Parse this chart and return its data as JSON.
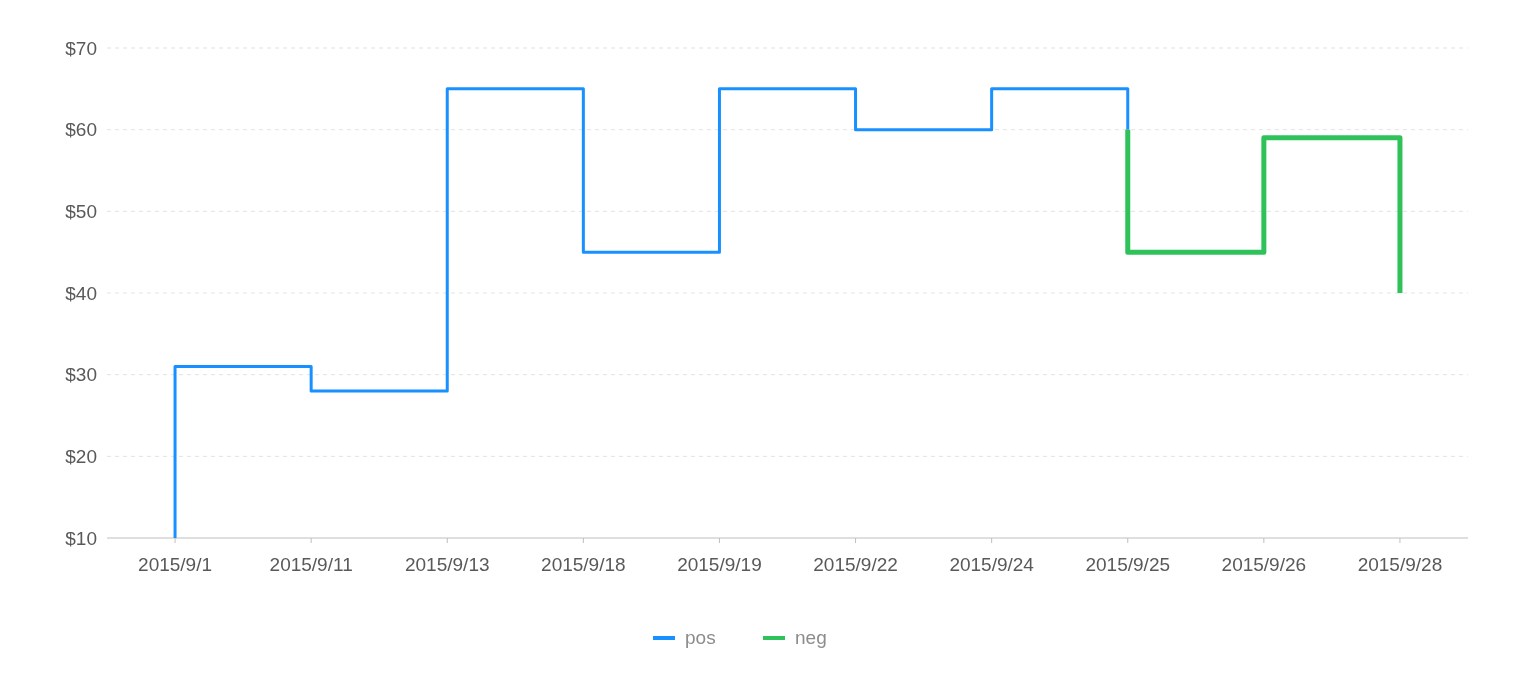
{
  "chart_data": {
    "type": "step",
    "categories": [
      "2015/9/1",
      "2015/9/11",
      "2015/9/13",
      "2015/9/18",
      "2015/9/19",
      "2015/9/22",
      "2015/9/24",
      "2015/9/25",
      "2015/9/26",
      "2015/9/28"
    ],
    "series": [
      {
        "name": "pos",
        "color": "#1890ff",
        "x": [
          "2015/9/1",
          "2015/9/11",
          "2015/9/13",
          "2015/9/18",
          "2015/9/19",
          "2015/9/22",
          "2015/9/24",
          "2015/9/25",
          "2015/9/25"
        ],
        "values": [
          10,
          31,
          28,
          65,
          45,
          65,
          60,
          65,
          60
        ]
      },
      {
        "name": "neg",
        "color": "#2fc25b",
        "x": [
          "2015/9/25",
          "2015/9/26",
          "2015/9/28",
          "2015/9/28"
        ],
        "values": [
          60,
          45,
          59,
          40
        ]
      }
    ],
    "ylim": [
      10,
      70
    ],
    "yticks": [
      {
        "value": 10,
        "label": "$10"
      },
      {
        "value": 20,
        "label": "$20"
      },
      {
        "value": 30,
        "label": "$30"
      },
      {
        "value": 40,
        "label": "$40"
      },
      {
        "value": 50,
        "label": "$50"
      },
      {
        "value": 60,
        "label": "$60"
      },
      {
        "value": 70,
        "label": "$70"
      }
    ],
    "grid": "y",
    "legend": "bottom"
  }
}
